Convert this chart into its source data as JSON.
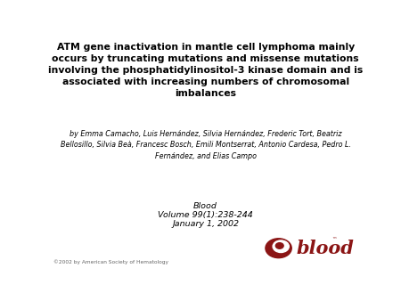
{
  "title": "ATM gene inactivation in mantle cell lymphoma mainly\noccurs by truncating mutations and missense mutations\ninvolving the phosphatidylinositol-3 kinase domain and is\nassociated with increasing numbers of chromosomal\nimbalances",
  "authors": "by Emma Camacho, Luis Hernández, Silvia Hernández, Frederic Tort, Beatriz\nBellosillo, Silvia Beà, Francesc Bosch, Emili Montserrat, Antonio Cardesa, Pedro L.\nFernández, and Elias Campo",
  "journal_line1": "Blood",
  "journal_line2": "Volume 99(1):238-244",
  "journal_line3": "January 1, 2002",
  "copyright": "©2002 by American Society of Hematology",
  "bg_color": "#ffffff",
  "title_color": "#000000",
  "authors_color": "#000000",
  "journal_color": "#000000",
  "copyright_color": "#666666",
  "blood_text_color": "#8B1515",
  "title_fontsize": 7.8,
  "authors_fontsize": 5.8,
  "journal_fontsize": 6.8,
  "copyright_fontsize": 4.2
}
